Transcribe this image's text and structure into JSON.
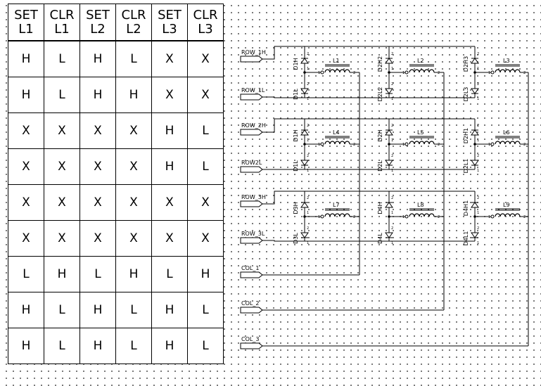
{
  "truth_table": {
    "headers": [
      {
        "top": "SET",
        "bottom": "L1"
      },
      {
        "top": "CLR",
        "bottom": "L1"
      },
      {
        "top": "SET",
        "bottom": "L2"
      },
      {
        "top": "CLR",
        "bottom": "L2"
      },
      {
        "top": "SET",
        "bottom": "L3"
      },
      {
        "top": "CLR",
        "bottom": "L3"
      }
    ],
    "rows": [
      [
        "H",
        "L",
        "H",
        "L",
        "X",
        "X"
      ],
      [
        "H",
        "L",
        "H",
        "H",
        "X",
        "X"
      ],
      [
        "X",
        "X",
        "X",
        "X",
        "H",
        "L"
      ],
      [
        "X",
        "X",
        "X",
        "X",
        "H",
        "L"
      ],
      [
        "X",
        "X",
        "X",
        "X",
        "X",
        "X"
      ],
      [
        "X",
        "X",
        "X",
        "X",
        "X",
        "X"
      ],
      [
        "L",
        "H",
        "L",
        "H",
        "L",
        "H"
      ],
      [
        "H",
        "L",
        "H",
        "L",
        "H",
        "L"
      ],
      [
        "H",
        "L",
        "H",
        "L",
        "H",
        "L"
      ]
    ]
  },
  "schematic": {
    "row_ports": [
      "ROW_1H",
      "ROW_1L",
      "ROW_2H",
      "ROW2L",
      "ROW_3H",
      "ROW_3L"
    ],
    "col_ports": [
      "COL_1",
      "COL_2",
      "COL_3"
    ],
    "inductors": [
      "L1",
      "L2",
      "L3",
      "L4",
      "L5",
      "L6",
      "L7",
      "L8",
      "L9"
    ],
    "diodes_high": [
      "D1H",
      "D2H2",
      "D2H3",
      "D1H",
      "D2H",
      "D2H1",
      "D3H",
      "D4H",
      "D4H1"
    ],
    "diodes_low": [
      "D1L",
      "D2L2",
      "D2L3",
      "D1L",
      "D2L",
      "D2L1",
      "D3L",
      "D4L",
      "D4L1"
    ],
    "pin_numbers": {
      "one": "1",
      "two": "2"
    }
  }
}
